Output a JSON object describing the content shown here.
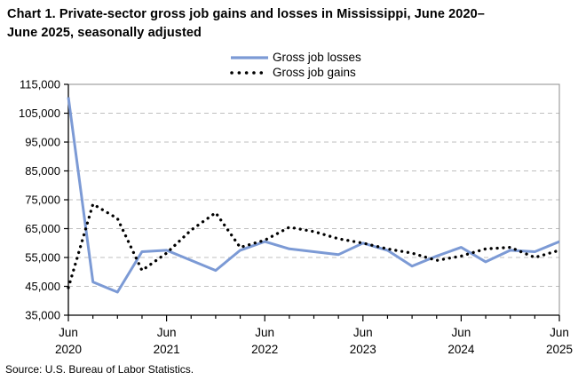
{
  "page": {
    "source": "Source: U.S. Bureau of Labor Statistics."
  },
  "legend": {
    "items": [
      {
        "label": "Gross job losses",
        "style": "solid"
      },
      {
        "label": "Gross job gains",
        "style": "dotted"
      }
    ]
  },
  "chart_data": {
    "type": "line",
    "title": "Chart 1. Private-sector gross job gains and losses in Mississippi, June 2020–June 2025, seasonally adjusted",
    "xlabel": "",
    "ylabel": "",
    "grid": "horizontal-dashed",
    "legend_position": "top",
    "ylim": [
      35000,
      115000
    ],
    "y_ticks": [
      115000,
      105000,
      95000,
      85000,
      75000,
      65000,
      55000,
      45000,
      35000
    ],
    "y_tick_labels": [
      "115,000",
      "105,000",
      "95,000",
      "85,000",
      "75,000",
      "65,000",
      "55,000",
      "45,000",
      "35,000"
    ],
    "categories": [
      "Jun 2020",
      "Sep 2020",
      "Dec 2020",
      "Mar 2021",
      "Jun 2021",
      "Sep 2021",
      "Dec 2021",
      "Mar 2022",
      "Jun 2022",
      "Sep 2022",
      "Dec 2022",
      "Mar 2023",
      "Jun 2023",
      "Sep 2023",
      "Dec 2023",
      "Mar 2024",
      "Jun 2024",
      "Sep 2024",
      "Dec 2024",
      "Mar 2025",
      "Jun 2025"
    ],
    "x_major_ticks": [
      {
        "index": 0,
        "month": "Jun",
        "year": "2020"
      },
      {
        "index": 4,
        "month": "Jun",
        "year": "2021"
      },
      {
        "index": 8,
        "month": "Jun",
        "year": "2022"
      },
      {
        "index": 12,
        "month": "Jun",
        "year": "2023"
      },
      {
        "index": 16,
        "month": "Jun",
        "year": "2024"
      },
      {
        "index": 20,
        "month": "Jun",
        "year": "2025"
      }
    ],
    "series": [
      {
        "name": "Gross job losses",
        "color": "#7C9AD5",
        "line_style": "solid",
        "values": [
          110500,
          46500,
          43000,
          57000,
          57500,
          54000,
          50500,
          57500,
          60500,
          58000,
          57000,
          56000,
          60000,
          57500,
          52000,
          55500,
          58500,
          53500,
          57500,
          57000,
          60500
        ]
      },
      {
        "name": "Gross job gains",
        "color": "#000000",
        "line_style": "dotted",
        "values": [
          44500,
          73500,
          68500,
          50500,
          56500,
          64500,
          70500,
          58500,
          61000,
          65500,
          64000,
          61500,
          60000,
          58000,
          56500,
          54000,
          55500,
          58000,
          58500,
          55000,
          57500
        ]
      }
    ]
  }
}
